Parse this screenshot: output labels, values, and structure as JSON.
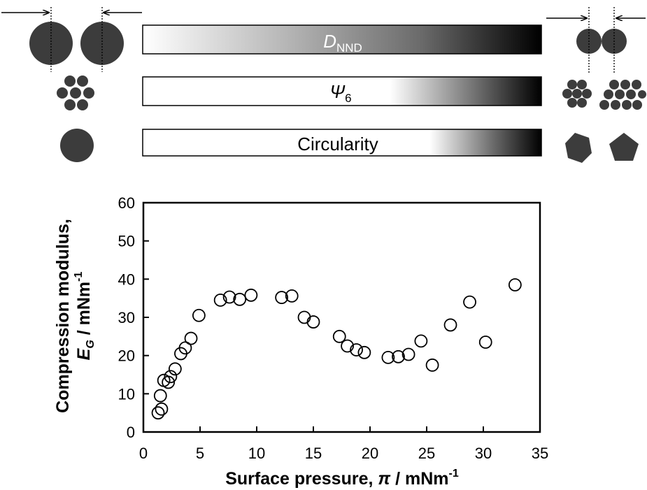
{
  "gradient_bars": [
    {
      "label_main": "D",
      "label_sub": "NND",
      "direction": "light-to-dark across full width"
    },
    {
      "label_main": "Ψ",
      "label_sub": "6",
      "direction": "dark from about 70% onward"
    },
    {
      "label_main": "Circularity",
      "label_sub": "",
      "direction": "dark from about 80% onward"
    }
  ],
  "colors": {
    "marker": "#000000",
    "shape_fill": "#3c3c3c",
    "bar_dark": "#000000",
    "bar_light": "#ffffff"
  },
  "chart_data": {
    "type": "scatter",
    "title": "",
    "xlabel": {
      "main": "Surface pressure, ",
      "symbol": "π",
      "unit": " / mNm",
      "sup": "-1"
    },
    "ylabel": {
      "line1": "Compression modulus,",
      "symbol": "E",
      "symbol_sub": "G",
      "unit": " / mNm",
      "sup": "-1"
    },
    "xlim": [
      0,
      35
    ],
    "ylim": [
      0,
      60
    ],
    "xticks": [
      "0",
      "5",
      "10",
      "15",
      "20",
      "25",
      "30",
      "35"
    ],
    "yticks": [
      "0",
      "10",
      "20",
      "30",
      "40",
      "50",
      "60"
    ],
    "grid": false,
    "marker": "open-circle",
    "points": [
      {
        "x": 1.3,
        "y": 5
      },
      {
        "x": 1.6,
        "y": 6
      },
      {
        "x": 1.5,
        "y": 9.5
      },
      {
        "x": 1.8,
        "y": 13.5
      },
      {
        "x": 2.2,
        "y": 13
      },
      {
        "x": 2.4,
        "y": 14.5
      },
      {
        "x": 2.8,
        "y": 16.5
      },
      {
        "x": 3.3,
        "y": 20.5
      },
      {
        "x": 3.7,
        "y": 22
      },
      {
        "x": 4.2,
        "y": 24.5
      },
      {
        "x": 4.9,
        "y": 30.5
      },
      {
        "x": 6.8,
        "y": 34.5
      },
      {
        "x": 7.6,
        "y": 35.3
      },
      {
        "x": 8.5,
        "y": 34.7
      },
      {
        "x": 9.5,
        "y": 35.8
      },
      {
        "x": 12.2,
        "y": 35.2
      },
      {
        "x": 13.1,
        "y": 35.6
      },
      {
        "x": 14.2,
        "y": 30
      },
      {
        "x": 15,
        "y": 28.8
      },
      {
        "x": 17.3,
        "y": 25
      },
      {
        "x": 18,
        "y": 22.5
      },
      {
        "x": 18.8,
        "y": 21.5
      },
      {
        "x": 19.5,
        "y": 20.8
      },
      {
        "x": 21.6,
        "y": 19.5
      },
      {
        "x": 22.5,
        "y": 19.7
      },
      {
        "x": 23.4,
        "y": 20.3
      },
      {
        "x": 24.5,
        "y": 23.8
      },
      {
        "x": 25.5,
        "y": 17.5
      },
      {
        "x": 27.1,
        "y": 28
      },
      {
        "x": 28.8,
        "y": 34
      },
      {
        "x": 30.2,
        "y": 23.5
      },
      {
        "x": 32.8,
        "y": 38.5
      }
    ]
  }
}
